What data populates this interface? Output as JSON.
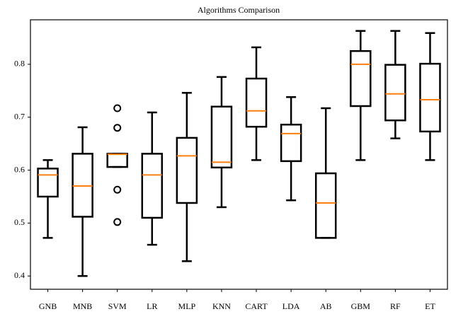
{
  "chart_data": {
    "type": "boxplot",
    "title": "Algorithms Comparison",
    "categories": [
      "GNB",
      "MNB",
      "SVM",
      "LR",
      "MLP",
      "KNN",
      "CART",
      "LDA",
      "AB",
      "GBM",
      "RF",
      "ET"
    ],
    "box_color": "#000000",
    "median_color": "#ff7f0e",
    "boxes": [
      {
        "whislo": 0.472,
        "q1": 0.55,
        "med": 0.591,
        "q3": 0.603,
        "whishi": 0.619,
        "fliers": []
      },
      {
        "whislo": 0.4,
        "q1": 0.512,
        "med": 0.57,
        "q3": 0.631,
        "whishi": 0.681,
        "fliers": []
      },
      {
        "whislo": 0.606,
        "q1": 0.606,
        "med": 0.63,
        "q3": 0.631,
        "whishi": 0.631,
        "fliers": [
          0.717,
          0.68,
          0.563,
          0.502
        ]
      },
      {
        "whislo": 0.459,
        "q1": 0.51,
        "med": 0.591,
        "q3": 0.631,
        "whishi": 0.709,
        "fliers": []
      },
      {
        "whislo": 0.428,
        "q1": 0.538,
        "med": 0.627,
        "q3": 0.661,
        "whishi": 0.746,
        "fliers": []
      },
      {
        "whislo": 0.53,
        "q1": 0.605,
        "med": 0.615,
        "q3": 0.72,
        "whishi": 0.776,
        "fliers": []
      },
      {
        "whislo": 0.619,
        "q1": 0.682,
        "med": 0.712,
        "q3": 0.773,
        "whishi": 0.832,
        "fliers": []
      },
      {
        "whislo": 0.543,
        "q1": 0.617,
        "med": 0.669,
        "q3": 0.686,
        "whishi": 0.738,
        "fliers": []
      },
      {
        "whislo": 0.472,
        "q1": 0.472,
        "med": 0.538,
        "q3": 0.594,
        "whishi": 0.717,
        "fliers": []
      },
      {
        "whislo": 0.619,
        "q1": 0.721,
        "med": 0.8,
        "q3": 0.825,
        "whishi": 0.863,
        "fliers": []
      },
      {
        "whislo": 0.66,
        "q1": 0.694,
        "med": 0.744,
        "q3": 0.799,
        "whishi": 0.863,
        "fliers": []
      },
      {
        "whislo": 0.619,
        "q1": 0.673,
        "med": 0.733,
        "q3": 0.801,
        "whishi": 0.859,
        "fliers": []
      }
    ],
    "ylim": [
      0.375,
      0.884
    ],
    "yticks": [
      0.4,
      0.5,
      0.6,
      0.7,
      0.8
    ],
    "grid": false
  }
}
